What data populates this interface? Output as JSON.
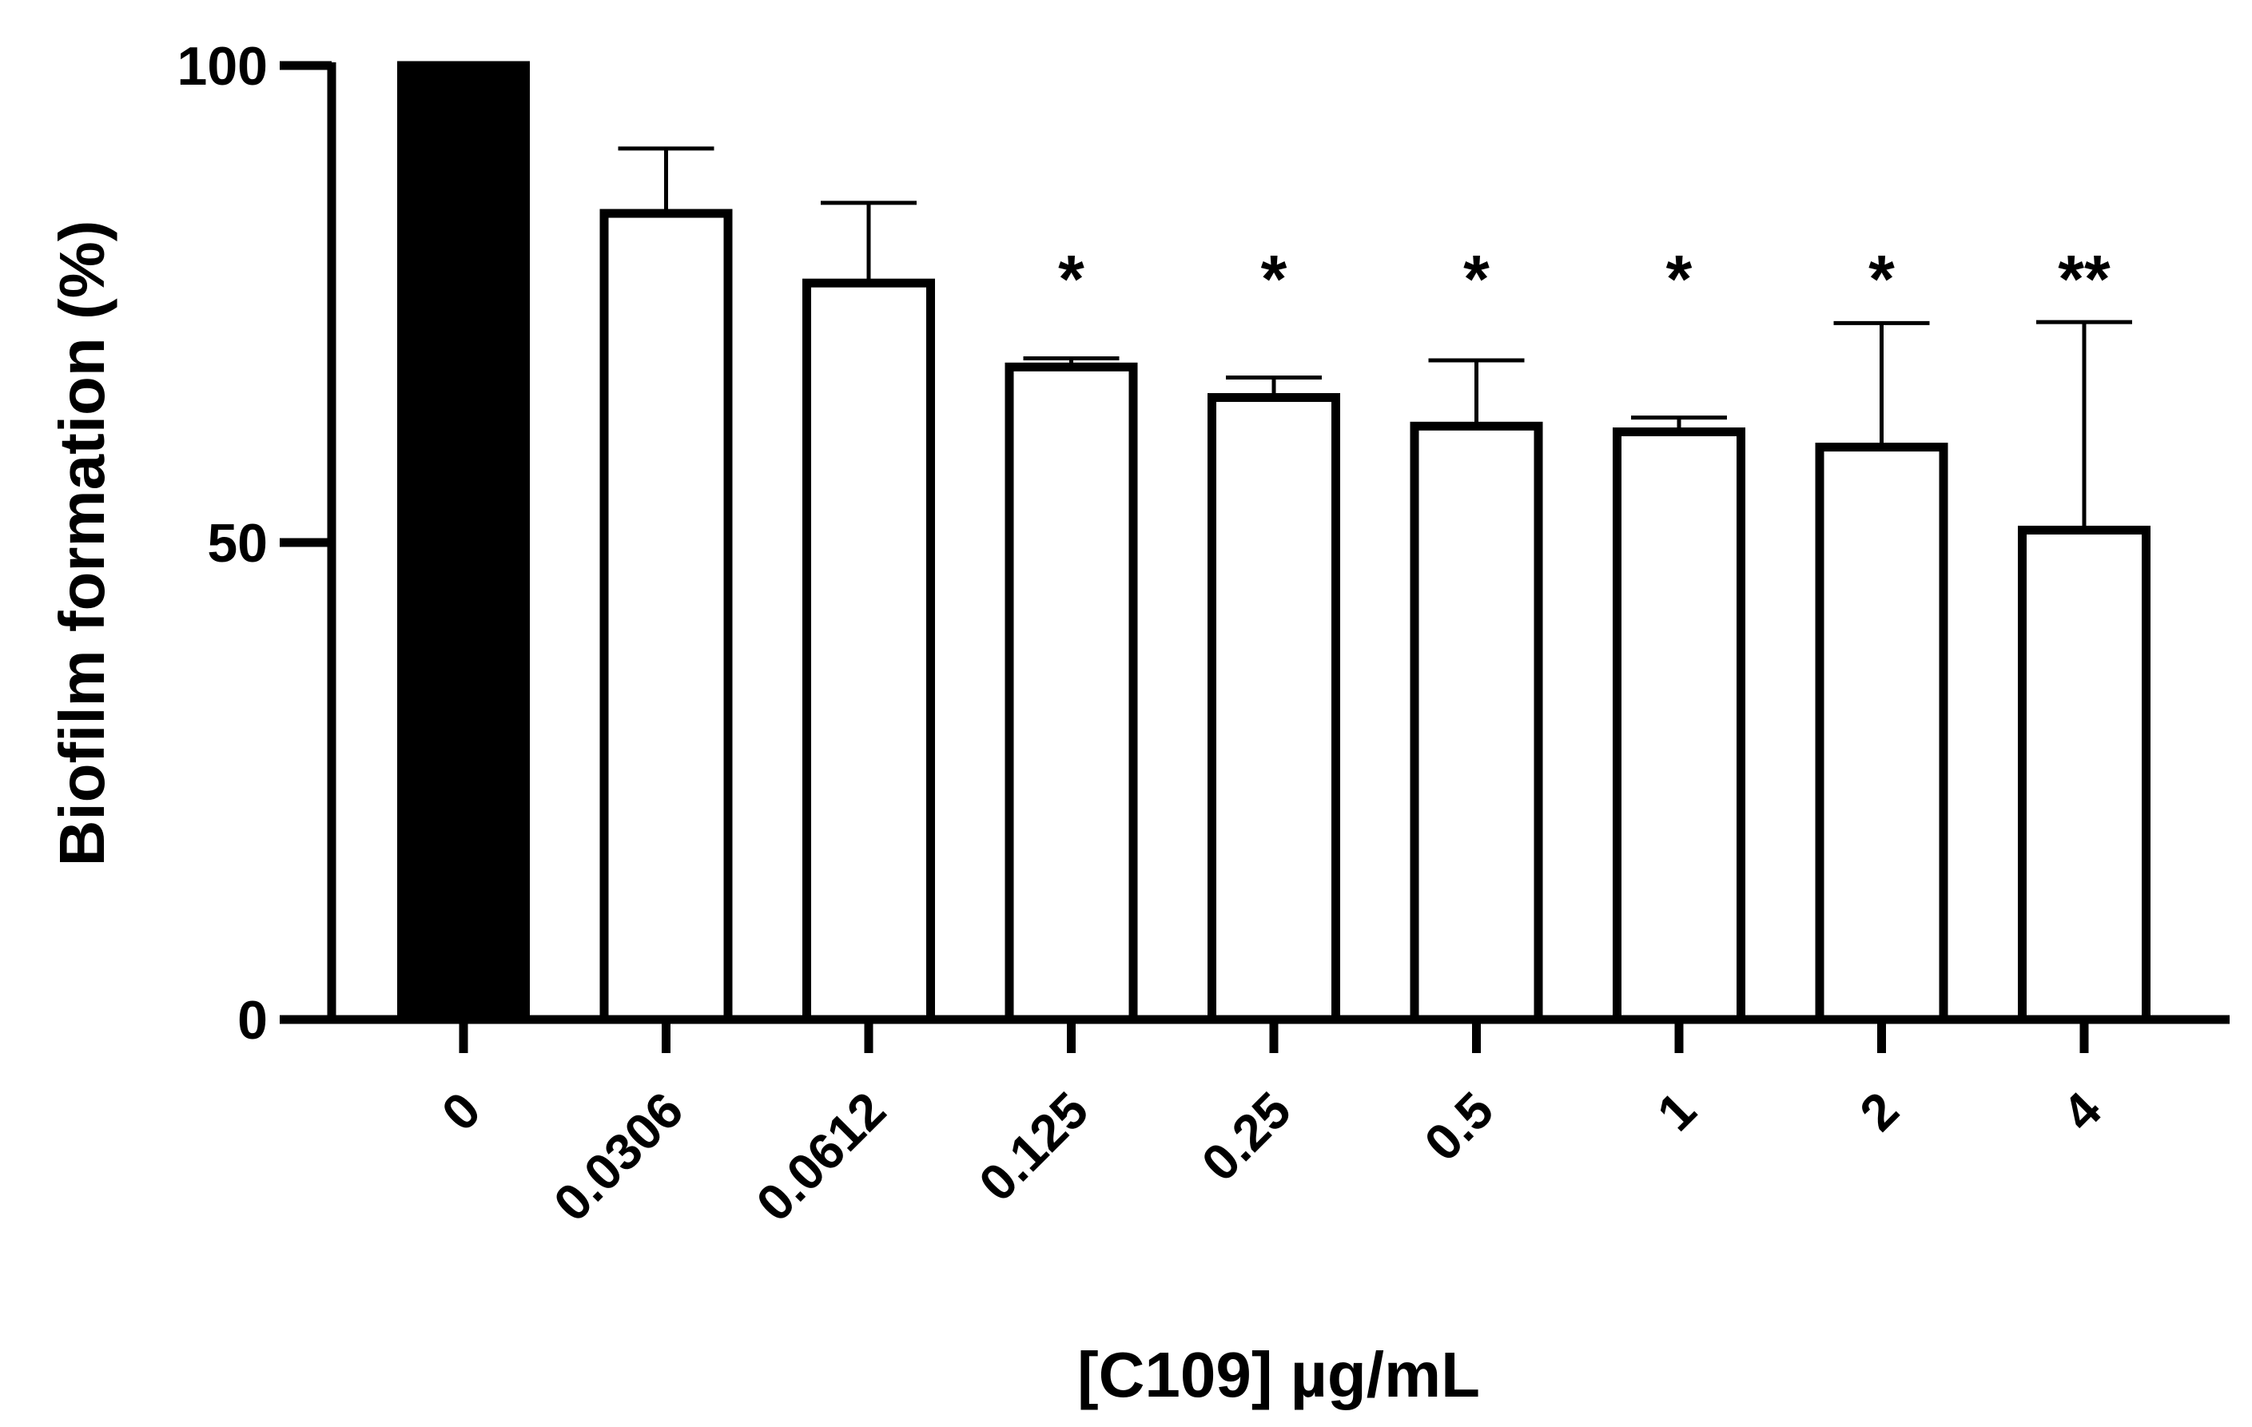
{
  "chart_data": {
    "type": "bar",
    "title": "",
    "xlabel": "[C109] µg/mL",
    "ylabel": "Biofilm formation (%)",
    "ylim": [
      0,
      100
    ],
    "yticks": [
      "0",
      "50",
      "100"
    ],
    "categories": [
      "0",
      "0.0306",
      "0.0612",
      "0.125",
      "0.25",
      "0.5",
      "1",
      "2",
      "4"
    ],
    "values": [
      100,
      84.5,
      77.2,
      68.4,
      65.2,
      62.2,
      61.6,
      60.0,
      51.3
    ],
    "error_upper": [
      0,
      6.8,
      8.4,
      0.9,
      2.1,
      6.9,
      1.5,
      13.0,
      21.8
    ],
    "significance": [
      "",
      "",
      "",
      "*",
      "*",
      "*",
      "*",
      "*",
      "**"
    ],
    "fill_colors": [
      "#000000",
      "#ffffff",
      "#ffffff",
      "#ffffff",
      "#ffffff",
      "#ffffff",
      "#ffffff",
      "#ffffff",
      "#ffffff"
    ],
    "edge_color": "#000000",
    "grid": false,
    "legend": "none"
  }
}
